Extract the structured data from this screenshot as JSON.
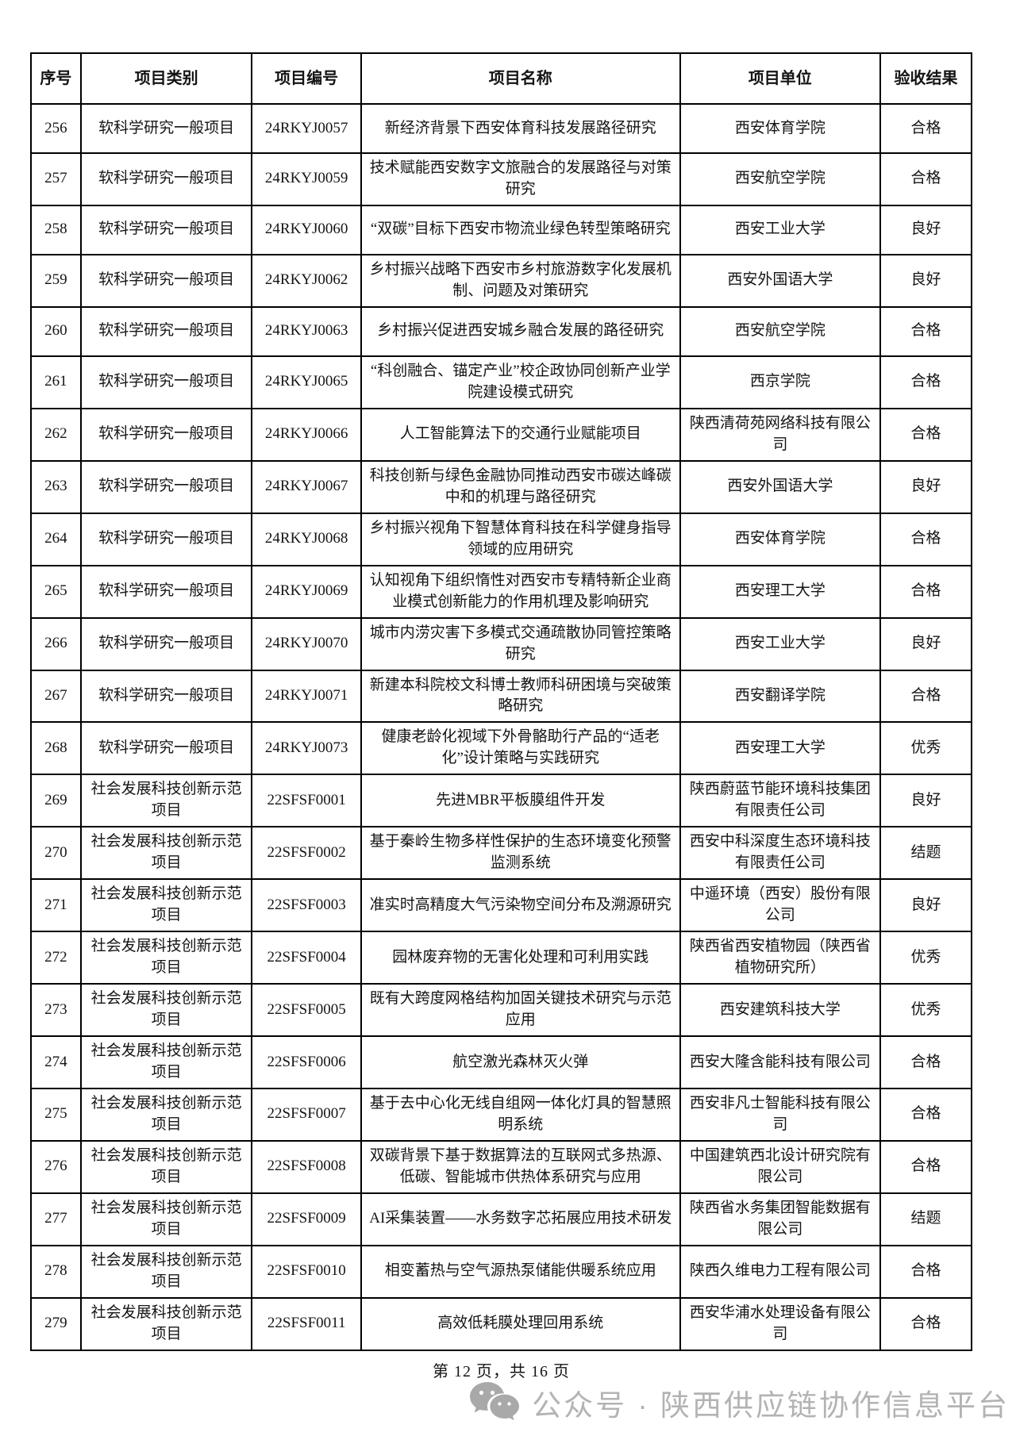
{
  "page": {
    "footer": "第 12 页，共 16 页",
    "watermark": {
      "icon": "wechat-icon",
      "text": "公众号 · 陕西供应链协作信息平台",
      "color": "#b3b3b3"
    }
  },
  "table": {
    "headers": [
      "序号",
      "项目类别",
      "项目编号",
      "项目名称",
      "项目单位",
      "验收结果"
    ],
    "rows": [
      {
        "no": "256",
        "category": "软科学研究一般项目",
        "code": "24RKYJ0057",
        "name": "新经济背景下西安体育科技发展路径研究",
        "unit": "西安体育学院",
        "result": "合格"
      },
      {
        "no": "257",
        "category": "软科学研究一般项目",
        "code": "24RKYJ0059",
        "name": "技术赋能西安数字文旅融合的发展路径与对策研究",
        "unit": "西安航空学院",
        "result": "合格"
      },
      {
        "no": "258",
        "category": "软科学研究一般项目",
        "code": "24RKYJ0060",
        "name": "“双碳”目标下西安市物流业绿色转型策略研究",
        "unit": "西安工业大学",
        "result": "良好"
      },
      {
        "no": "259",
        "category": "软科学研究一般项目",
        "code": "24RKYJ0062",
        "name": "乡村振兴战略下西安市乡村旅游数字化发展机制、问题及对策研究",
        "unit": "西安外国语大学",
        "result": "良好"
      },
      {
        "no": "260",
        "category": "软科学研究一般项目",
        "code": "24RKYJ0063",
        "name": "乡村振兴促进西安城乡融合发展的路径研究",
        "unit": "西安航空学院",
        "result": "合格"
      },
      {
        "no": "261",
        "category": "软科学研究一般项目",
        "code": "24RKYJ0065",
        "name": "“科创融合、锚定产业”校企政协同创新产业学院建设模式研究",
        "unit": "西京学院",
        "result": "合格"
      },
      {
        "no": "262",
        "category": "软科学研究一般项目",
        "code": "24RKYJ0066",
        "name": "人工智能算法下的交通行业赋能项目",
        "unit": "陕西清荷苑网络科技有限公司",
        "result": "合格"
      },
      {
        "no": "263",
        "category": "软科学研究一般项目",
        "code": "24RKYJ0067",
        "name": "科技创新与绿色金融协同推动西安市碳达峰碳中和的机理与路径研究",
        "unit": "西安外国语大学",
        "result": "良好"
      },
      {
        "no": "264",
        "category": "软科学研究一般项目",
        "code": "24RKYJ0068",
        "name": "乡村振兴视角下智慧体育科技在科学健身指导领域的应用研究",
        "unit": "西安体育学院",
        "result": "合格"
      },
      {
        "no": "265",
        "category": "软科学研究一般项目",
        "code": "24RKYJ0069",
        "name": "认知视角下组织惰性对西安市专精特新企业商业模式创新能力的作用机理及影响研究",
        "unit": "西安理工大学",
        "result": "合格"
      },
      {
        "no": "266",
        "category": "软科学研究一般项目",
        "code": "24RKYJ0070",
        "name": "城市内涝灾害下多模式交通疏散协同管控策略研究",
        "unit": "西安工业大学",
        "result": "良好"
      },
      {
        "no": "267",
        "category": "软科学研究一般项目",
        "code": "24RKYJ0071",
        "name": "新建本科院校文科博士教师科研困境与突破策略研究",
        "unit": "西安翻译学院",
        "result": "合格"
      },
      {
        "no": "268",
        "category": "软科学研究一般项目",
        "code": "24RKYJ0073",
        "name": "健康老龄化视域下外骨骼助行产品的“适老化”设计策略与实践研究",
        "unit": "西安理工大学",
        "result": "优秀"
      },
      {
        "no": "269",
        "category": "社会发展科技创新示范项目",
        "code": "22SFSF0001",
        "name": "先进MBR平板膜组件开发",
        "unit": "陕西蔚蓝节能环境科技集团有限责任公司",
        "result": "良好"
      },
      {
        "no": "270",
        "category": "社会发展科技创新示范项目",
        "code": "22SFSF0002",
        "name": "基于秦岭生物多样性保护的生态环境变化预警监测系统",
        "unit": "西安中科深度生态环境科技有限责任公司",
        "result": "结题"
      },
      {
        "no": "271",
        "category": "社会发展科技创新示范项目",
        "code": "22SFSF0003",
        "name": "准实时高精度大气污染物空间分布及溯源研究",
        "unit": "中遥环境（西安）股份有限公司",
        "result": "良好"
      },
      {
        "no": "272",
        "category": "社会发展科技创新示范项目",
        "code": "22SFSF0004",
        "name": "园林废弃物的无害化处理和可利用实践",
        "unit": "陕西省西安植物园（陕西省植物研究所）",
        "result": "优秀"
      },
      {
        "no": "273",
        "category": "社会发展科技创新示范项目",
        "code": "22SFSF0005",
        "name": "既有大跨度网格结构加固关键技术研究与示范应用",
        "unit": "西安建筑科技大学",
        "result": "优秀"
      },
      {
        "no": "274",
        "category": "社会发展科技创新示范项目",
        "code": "22SFSF0006",
        "name": "航空激光森林灭火弹",
        "unit": "西安大隆含能科技有限公司",
        "result": "合格"
      },
      {
        "no": "275",
        "category": "社会发展科技创新示范项目",
        "code": "22SFSF0007",
        "name": "基于去中心化无线自组网一体化灯具的智慧照明系统",
        "unit": "西安非凡士智能科技有限公司",
        "result": "合格"
      },
      {
        "no": "276",
        "category": "社会发展科技创新示范项目",
        "code": "22SFSF0008",
        "name": "双碳背景下基于数据算法的互联网式多热源、低碳、智能城市供热体系研究与应用",
        "unit": "中国建筑西北设计研究院有限公司",
        "result": "合格"
      },
      {
        "no": "277",
        "category": "社会发展科技创新示范项目",
        "code": "22SFSF0009",
        "name": "AI采集装置——水务数字芯拓展应用技术研发",
        "unit": "陕西省水务集团智能数据有限公司",
        "result": "结题"
      },
      {
        "no": "278",
        "category": "社会发展科技创新示范项目",
        "code": "22SFSF0010",
        "name": "相变蓄热与空气源热泵储能供暖系统应用",
        "unit": "陕西久维电力工程有限公司",
        "result": "合格"
      },
      {
        "no": "279",
        "category": "社会发展科技创新示范项目",
        "code": "22SFSF0011",
        "name": "高效低耗膜处理回用系统",
        "unit": "西安华浦水处理设备有限公司",
        "result": "合格"
      }
    ]
  }
}
